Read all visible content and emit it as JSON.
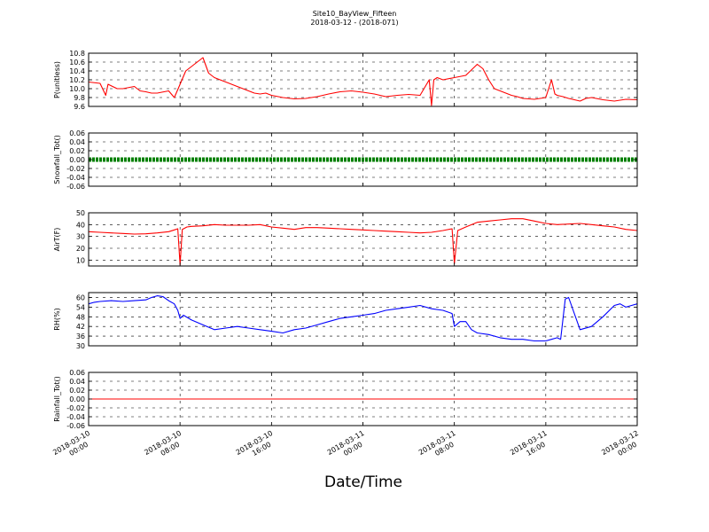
{
  "figure": {
    "title_line1": "Site10_BayView_Fifteen",
    "title_line2": "2018-03-12 - (2018-071)",
    "xlabel": "Date/Time",
    "x_ticks": [
      [
        "2018-03-10",
        "00:00"
      ],
      [
        "2018-03-10",
        "08:00"
      ],
      [
        "2018-03-10",
        "16:00"
      ],
      [
        "2018-03-11",
        "00:00"
      ],
      [
        "2018-03-11",
        "08:00"
      ],
      [
        "2018-03-11",
        "16:00"
      ],
      [
        "2018-03-12",
        "00:00"
      ]
    ]
  },
  "chart_data": [
    {
      "type": "line",
      "ylabel": "P(unitless)",
      "ylim": [
        9.6,
        10.8
      ],
      "yticks": [
        "9.6",
        "9.8",
        "10.0",
        "10.2",
        "10.4",
        "10.6",
        "10.8"
      ],
      "xlim_hours": [
        0,
        48
      ],
      "grid": true,
      "series": [
        {
          "color": "#ff0000",
          "x": [
            0,
            1.0,
            1.5,
            1.7,
            2.5,
            3.0,
            4.0,
            4.5,
            5.0,
            5.5,
            6.0,
            7.0,
            7.5,
            8.0,
            8.5,
            9.0,
            9.5,
            10.0,
            10.5,
            11.0,
            11.5,
            12.0,
            12.5,
            13.0,
            13.5,
            14.0,
            14.5,
            15.0,
            15.5,
            16.0,
            17.0,
            18.0,
            19.0,
            20.0,
            21.0,
            22.0,
            23.0,
            24.0,
            25.0,
            26.0,
            27.0,
            28.0,
            29.0,
            29.8,
            30.0,
            30.2,
            30.5,
            31.0,
            32.0,
            33.0,
            34.0,
            34.5,
            35.0,
            35.5,
            36.0,
            36.5,
            37.0,
            37.5,
            38.0,
            39.0,
            40.0,
            40.5,
            40.8,
            41.0,
            41.5,
            42.0,
            42.5,
            43.0,
            43.5,
            44.0,
            45.0,
            46.0,
            47.0,
            48.0
          ],
          "y": [
            10.15,
            10.12,
            9.85,
            10.1,
            10.0,
            10.0,
            10.05,
            9.95,
            9.93,
            9.9,
            9.9,
            9.95,
            9.8,
            10.1,
            10.4,
            10.5,
            10.6,
            10.7,
            10.35,
            10.25,
            10.2,
            10.15,
            10.1,
            10.05,
            10.0,
            9.95,
            9.9,
            9.88,
            9.9,
            9.85,
            9.8,
            9.77,
            9.78,
            9.82,
            9.88,
            9.93,
            9.95,
            9.92,
            9.88,
            9.82,
            9.85,
            9.87,
            9.85,
            10.2,
            9.62,
            10.2,
            10.25,
            10.2,
            10.25,
            10.3,
            10.55,
            10.45,
            10.2,
            10.0,
            9.95,
            9.9,
            9.85,
            9.82,
            9.78,
            9.76,
            9.8,
            10.2,
            9.88,
            9.85,
            9.82,
            9.78,
            9.75,
            9.72,
            9.78,
            9.8,
            9.75,
            9.72,
            9.76,
            9.75
          ]
        }
      ]
    },
    {
      "type": "line",
      "ylabel": "Snowfall_Tot()",
      "ylim": [
        -0.06,
        0.06
      ],
      "yticks": [
        "-0.06",
        "-0.04",
        "-0.02",
        "0.00",
        "0.02",
        "0.04",
        "0.06"
      ],
      "xlim_hours": [
        0,
        48
      ],
      "grid": true,
      "series": [
        {
          "color": "#008000",
          "marker": "dense",
          "x": [
            0,
            48
          ],
          "y": [
            0,
            0
          ]
        }
      ]
    },
    {
      "type": "line",
      "ylabel": "AirT(F)",
      "ylim": [
        5,
        50
      ],
      "yticks": [
        "10",
        "20",
        "30",
        "40",
        "50"
      ],
      "xlim_hours": [
        0,
        48
      ],
      "grid": true,
      "series": [
        {
          "color": "#ff0000",
          "x": [
            0,
            1,
            2,
            3,
            4,
            5,
            6,
            7,
            7.5,
            7.8,
            8.0,
            8.2,
            8.6,
            9,
            10,
            11,
            12,
            13,
            14,
            15,
            16,
            17,
            18,
            19,
            20,
            21,
            22,
            23,
            24,
            25,
            26,
            27,
            28,
            29,
            30,
            31,
            31.8,
            32.0,
            32.3,
            33,
            34,
            35,
            36,
            37,
            38,
            39,
            40,
            41,
            42,
            43,
            44,
            45,
            46,
            47,
            48
          ],
          "y": [
            34,
            33.5,
            33,
            32.5,
            32,
            32.2,
            33,
            34,
            35.5,
            36.5,
            6,
            36,
            38,
            38.5,
            39,
            40,
            39.5,
            39.5,
            39.5,
            40,
            38,
            37,
            36,
            37.5,
            37.5,
            37,
            36.5,
            36,
            35.5,
            35,
            34.5,
            34,
            33.5,
            33,
            33.5,
            35,
            36.5,
            7,
            35,
            38,
            42,
            43,
            44,
            45,
            45,
            43,
            41,
            40,
            40.5,
            41,
            40,
            39,
            38,
            36,
            35
          ]
        }
      ]
    },
    {
      "type": "line",
      "ylabel": "RH(%)",
      "ylim": [
        30,
        63
      ],
      "yticks": [
        "30",
        "36",
        "42",
        "48",
        "54",
        "60"
      ],
      "xlim_hours": [
        0,
        48
      ],
      "grid": true,
      "series": [
        {
          "color": "#0000ff",
          "x": [
            0,
            0.5,
            1,
            2,
            3,
            4,
            5,
            5.5,
            6,
            6.5,
            7,
            7.5,
            7.8,
            8,
            8.3,
            9,
            10,
            11,
            12,
            13,
            14,
            15,
            16,
            17,
            18,
            19,
            20,
            21,
            22,
            23,
            24,
            25,
            26,
            27,
            28,
            29,
            30,
            31,
            31.8,
            32,
            32.5,
            33,
            33.5,
            34,
            35,
            36,
            37,
            38,
            39,
            39.5,
            40,
            40.5,
            41,
            41.3,
            41.7,
            42,
            43,
            44,
            45,
            46,
            46.5,
            47,
            47.5,
            48
          ],
          "y": [
            56,
            57,
            57.5,
            58,
            57.5,
            58,
            58.5,
            60,
            61,
            60.5,
            58,
            56,
            52,
            47,
            49,
            46,
            43,
            40,
            41,
            42,
            41,
            40,
            39,
            38,
            40,
            41,
            43,
            45,
            47,
            48,
            49,
            50,
            52,
            53,
            54,
            55,
            53,
            52,
            50,
            42,
            45,
            45,
            40,
            38,
            37,
            35,
            34,
            34,
            33,
            33,
            33,
            34,
            35,
            34,
            59,
            60,
            40,
            42,
            48,
            55,
            56,
            54,
            55,
            56
          ]
        }
      ]
    },
    {
      "type": "line",
      "ylabel": "Rainfall_Tot()",
      "ylim": [
        -0.06,
        0.06
      ],
      "yticks": [
        "-0.06",
        "-0.04",
        "-0.02",
        "0.00",
        "0.02",
        "0.04",
        "0.06"
      ],
      "xlim_hours": [
        0,
        48
      ],
      "grid": true,
      "series": [
        {
          "color": "#ff0000",
          "x": [
            0,
            48
          ],
          "y": [
            0,
            0
          ]
        }
      ]
    }
  ]
}
